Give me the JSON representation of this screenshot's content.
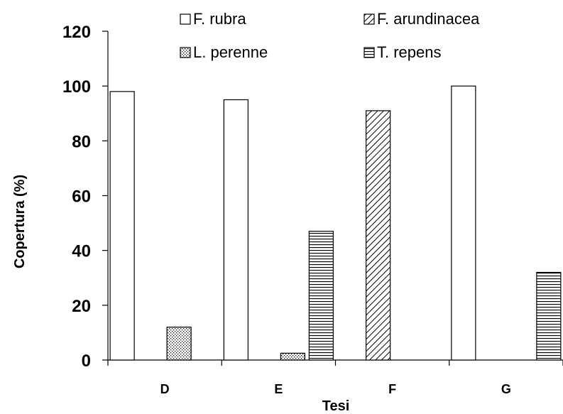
{
  "chart_data": {
    "type": "bar",
    "categories": [
      "D",
      "E",
      "F",
      "G"
    ],
    "series": [
      {
        "name": "F. rubra",
        "pattern": "blank",
        "values": [
          98,
          95,
          0,
          100
        ]
      },
      {
        "name": "F. arundinacea",
        "pattern": "diagonal",
        "values": [
          0,
          0,
          91,
          0
        ]
      },
      {
        "name": "L. perenne",
        "pattern": "dots",
        "values": [
          12,
          2.5,
          0,
          0
        ]
      },
      {
        "name": "T. repens",
        "pattern": "horizontal",
        "values": [
          0,
          47,
          0,
          32
        ]
      }
    ],
    "xlabel": "Tesi",
    "ylabel": "Copertura (%)",
    "ylim": [
      0,
      120
    ],
    "yticks": [
      0,
      20,
      40,
      60,
      80,
      100,
      120
    ],
    "grid": false,
    "legend": "top",
    "colors": {
      "bar_fill": "#ffffff",
      "bar_stroke": "#000000",
      "axis": "#000000"
    }
  }
}
